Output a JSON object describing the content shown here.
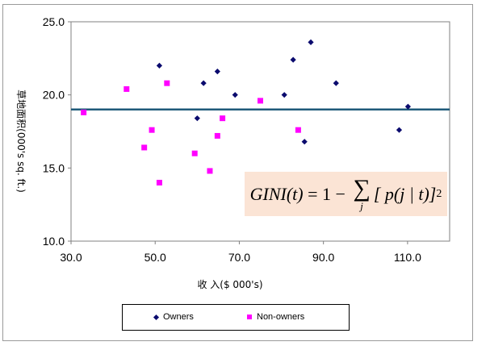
{
  "chart_data": {
    "type": "scatter",
    "title": "",
    "xlabel": "收 入($ 000's)",
    "ylabel": "草地面积(000's sq. ft.)",
    "xlim": [
      30,
      120
    ],
    "ylim": [
      10,
      25
    ],
    "x_ticks": [
      "30.0",
      "50.0",
      "70.0",
      "90.0",
      "110.0"
    ],
    "y_ticks": [
      "10.0",
      "15.0",
      "20.0",
      "25.0"
    ],
    "reference_line": {
      "y": 19.0,
      "color": "#1f5a7a"
    },
    "series": [
      {
        "name": "Owners",
        "marker": "diamond",
        "color": "#0b0b6e",
        "points": [
          [
            51.0,
            22.0
          ],
          [
            64.8,
            21.6
          ],
          [
            61.5,
            20.8
          ],
          [
            69.0,
            20.0
          ],
          [
            60.0,
            18.4
          ],
          [
            80.7,
            20.0
          ],
          [
            82.8,
            22.4
          ],
          [
            87.0,
            23.6
          ],
          [
            93.0,
            20.8
          ],
          [
            85.5,
            16.8
          ],
          [
            108.0,
            17.6
          ],
          [
            110.1,
            19.2
          ]
        ]
      },
      {
        "name": "Non-owners",
        "marker": "square",
        "color": "#ff00ff",
        "points": [
          [
            33.0,
            18.8
          ],
          [
            43.2,
            20.4
          ],
          [
            52.8,
            20.8
          ],
          [
            49.2,
            17.6
          ],
          [
            47.4,
            16.4
          ],
          [
            51.0,
            14.0
          ],
          [
            59.4,
            16.0
          ],
          [
            63.0,
            14.8
          ],
          [
            64.8,
            17.2
          ],
          [
            66.0,
            18.4
          ],
          [
            75.0,
            19.6
          ],
          [
            84.0,
            17.6
          ]
        ]
      }
    ]
  },
  "formula": {
    "lhs": "GINI(t)",
    "eq": " = 1 − ",
    "sum": "∑",
    "sub": "j",
    "body": "[ p(j | t)]",
    "exp": "2"
  },
  "legend": {
    "owners_label": "Owners",
    "nonowners_label": "Non-owners",
    "owners_color": "#0b0b6e",
    "nonowners_color": "#ff00ff"
  }
}
